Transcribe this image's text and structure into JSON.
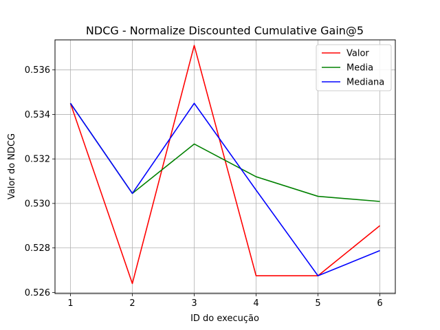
{
  "chart_data": {
    "type": "line",
    "title": "NDCG - Normalize Discounted Cumulative Gain@5",
    "xlabel": "ID do execução",
    "ylabel": "Valor do NDCG",
    "x": [
      1,
      2,
      3,
      4,
      5,
      6
    ],
    "x_ticks": [
      "1",
      "2",
      "3",
      "4",
      "5",
      "6"
    ],
    "y_ticks": [
      "0.526",
      "0.528",
      "0.530",
      "0.532",
      "0.534",
      "0.536"
    ],
    "y_tick_values": [
      0.526,
      0.528,
      0.53,
      0.532,
      0.534,
      0.536
    ],
    "xlim": [
      0.75,
      6.25
    ],
    "ylim": [
      0.52595,
      0.53735
    ],
    "grid": true,
    "legend_position": "top-right",
    "series": [
      {
        "name": "Valor",
        "color": "#ff0000",
        "values": [
          0.5345,
          0.5264,
          0.5371,
          0.52675,
          0.52675,
          0.529
        ]
      },
      {
        "name": "Media",
        "color": "#008000",
        "values": [
          0.5345,
          0.53045,
          0.53267,
          0.5312,
          0.53032,
          0.53009
        ]
      },
      {
        "name": "Mediana",
        "color": "#0000ff",
        "values": [
          0.5345,
          0.53045,
          0.5345,
          0.5306,
          0.52675,
          0.52788
        ]
      }
    ]
  }
}
